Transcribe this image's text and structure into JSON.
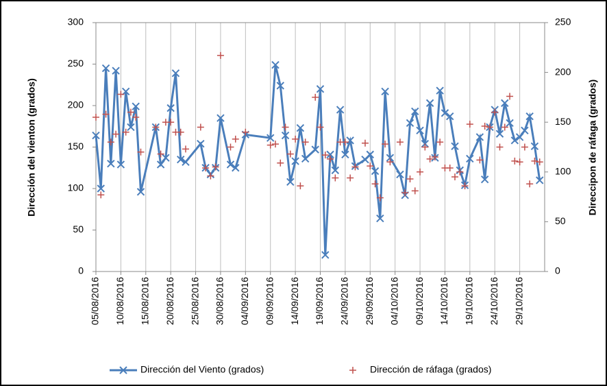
{
  "chart_data": {
    "type": "line",
    "yaxis_label": "Dirección del vienton (grados)",
    "y2axis_label": "Direccipon de ráfaga (grados)",
    "x": [
      "05/08/2016",
      "06/08/2016",
      "07/08/2016",
      "08/08/2016",
      "09/08/2016",
      "10/08/2016",
      "11/08/2016",
      "12/08/2016",
      "13/08/2016",
      "14/08/2016",
      "17/08/2016",
      "18/08/2016",
      "19/08/2016",
      "20/08/2016",
      "21/08/2016",
      "22/08/2016",
      "23/08/2016",
      "26/08/2016",
      "27/08/2016",
      "28/08/2016",
      "29/08/2016",
      "30/08/2016",
      "01/09/2016",
      "02/09/2016",
      "04/09/2016",
      "09/09/2016",
      "10/09/2016",
      "11/09/2016",
      "12/09/2016",
      "13/09/2016",
      "14/09/2016",
      "15/09/2016",
      "16/09/2016",
      "18/09/2016",
      "19/09/2016",
      "20/09/2016",
      "21/09/2016",
      "22/09/2016",
      "23/09/2016",
      "24/09/2016",
      "25/09/2016",
      "26/09/2016",
      "28/09/2016",
      "29/09/2016",
      "30/09/2016",
      "01/10/2016",
      "02/10/2016",
      "03/10/2016",
      "05/10/2016",
      "06/10/2016",
      "07/10/2016",
      "08/10/2016",
      "09/10/2016",
      "10/10/2016",
      "11/10/2016",
      "12/10/2016",
      "13/10/2016",
      "14/10/2016",
      "15/10/2016",
      "16/10/2016",
      "17/10/2016",
      "18/10/2016",
      "19/10/2016",
      "21/10/2016",
      "22/10/2016",
      "23/10/2016",
      "24/10/2016",
      "25/10/2016",
      "26/10/2016",
      "27/10/2016",
      "28/10/2016",
      "29/10/2016",
      "30/10/2016",
      "31/10/2016",
      "01/11/2016",
      "02/11/2016"
    ],
    "series": [
      {
        "name": "Dirección del Viento (grados)",
        "color": "#4a7ebb",
        "marker": "x",
        "values": [
          164,
          100,
          245,
          130,
          242,
          129,
          217,
          174,
          199,
          96,
          174,
          129,
          137,
          197,
          239,
          135,
          132,
          154,
          125,
          117,
          125,
          185,
          129,
          125,
          165,
          161,
          249,
          224,
          164,
          108,
          133,
          173,
          136,
          147,
          220,
          20,
          141,
          122,
          195,
          141,
          158,
          127,
          135,
          141,
          121,
          64,
          217,
          137,
          117,
          92,
          179,
          193,
          170,
          154,
          203,
          137,
          218,
          191,
          187,
          151,
          122,
          104,
          136,
          162,
          111,
          174,
          195,
          166,
          203,
          179,
          158,
          162,
          170,
          187,
          151,
          110
        ]
      },
      {
        "name": "Dirección de ráfaga (grados)",
        "color": "#c0504d",
        "marker": "+",
        "axis": "y2",
        "values": [
          155,
          77,
          158,
          130,
          138,
          178,
          140,
          160,
          155,
          120,
          145,
          118,
          150,
          150,
          140,
          140,
          123,
          145,
          104,
          96,
          105,
          217,
          125,
          133,
          140,
          127,
          128,
          109,
          145,
          118,
          133,
          86,
          130,
          175,
          145,
          117,
          113,
          94,
          130,
          130,
          94,
          105,
          129,
          106,
          88,
          74,
          128,
          110,
          130,
          79,
          93,
          81,
          100,
          125,
          113,
          115,
          130,
          104,
          104,
          95,
          100,
          86,
          148,
          112,
          146,
          145,
          160,
          125,
          145,
          176,
          111,
          110,
          125,
          88,
          111,
          110
        ]
      }
    ],
    "xlim": [
      "05/08/2016",
      "03/11/2016"
    ],
    "xticks": [
      "05/08/2016",
      "10/08/2016",
      "15/08/2016",
      "20/08/2016",
      "25/08/2016",
      "30/08/2016",
      "04/09/2016",
      "09/09/2016",
      "14/09/2016",
      "19/09/2016",
      "24/09/2016",
      "29/09/2016",
      "04/10/2016",
      "09/10/2016",
      "14/10/2016",
      "19/10/2016",
      "24/10/2016",
      "29/10/2016"
    ],
    "ylim": [
      0,
      300
    ],
    "yticks": [
      0,
      50,
      100,
      150,
      200,
      250,
      300
    ],
    "y2lim": [
      0,
      250
    ],
    "y2ticks": [
      0,
      50,
      100,
      150,
      200,
      250
    ],
    "grid": "x",
    "legend": "bottom"
  }
}
